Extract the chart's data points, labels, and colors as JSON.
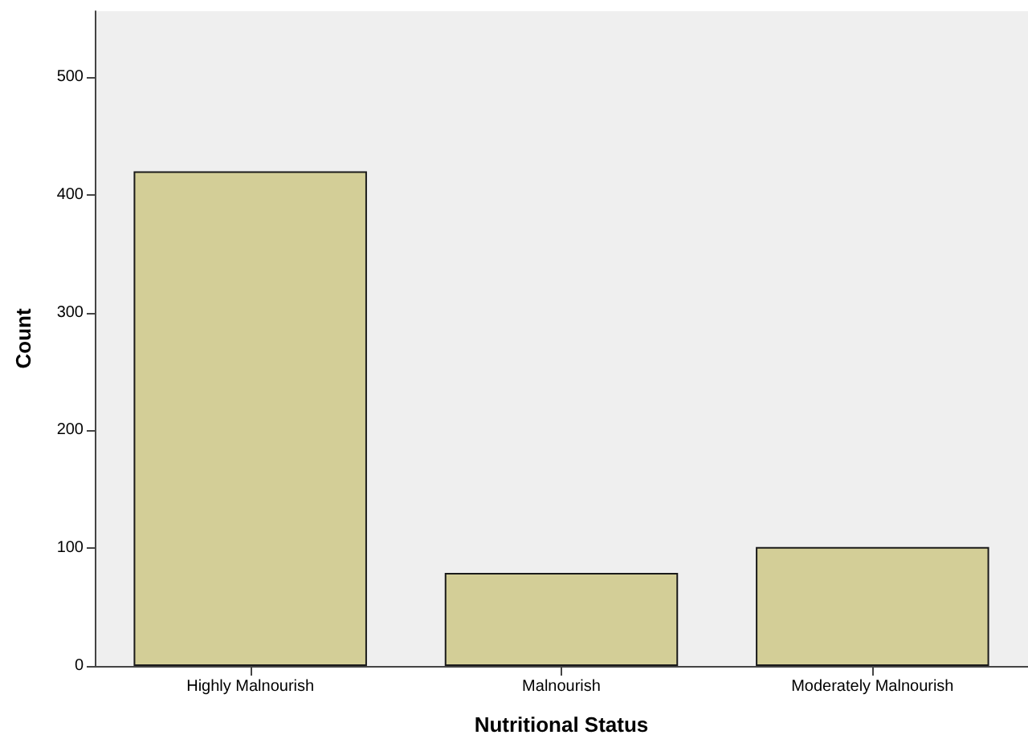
{
  "chart_data": {
    "type": "bar",
    "xlabel": "Nutritional Status",
    "ylabel": "Count",
    "categories": [
      "Highly Malnourish",
      "Malnourish",
      "Moderately Malnourish"
    ],
    "values": [
      420,
      79,
      101
    ],
    "color": "#d3ce97",
    "ylim": [
      0,
      556
    ],
    "yticks": [
      0,
      100,
      200,
      300,
      400,
      500
    ],
    "grid": false
  }
}
